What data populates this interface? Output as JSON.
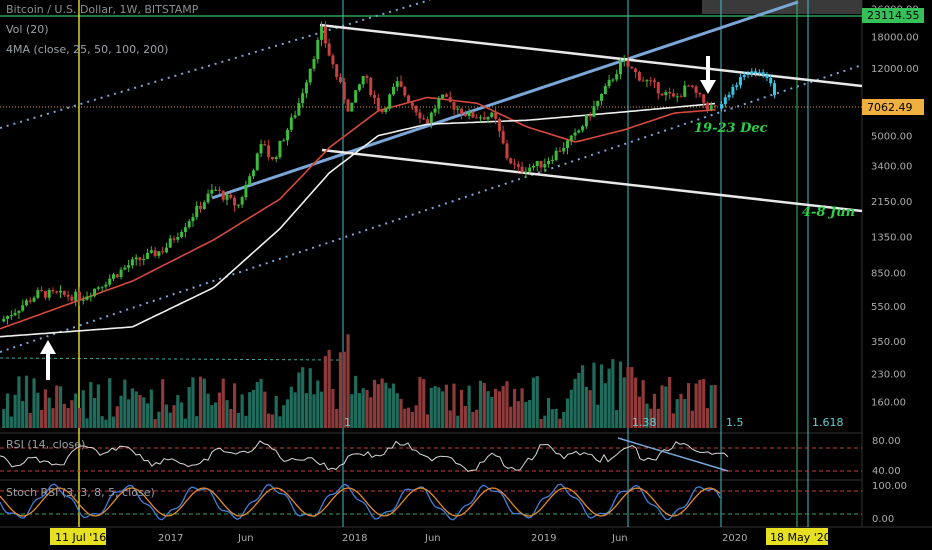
{
  "header": {
    "symbol_line": "Bitcoin / U.S. Dollar, 1W, BITSTAMP",
    "volume_label": "Vol (20)",
    "ma_label": "4MA (close, 25, 50, 100, 200)",
    "rsi_label": "RSI (14, close)",
    "stoch_label": "Stoch RSI (3, 3, 8, 5, close)"
  },
  "colors": {
    "up": "#3cbb3c",
    "down": "#c94040",
    "projection": "#37c5e8",
    "vol_up": "#1f6b5c",
    "vol_down": "#8e3a3a",
    "trendline": "#e8e8e8",
    "trendline_blue": "#7aa6d8",
    "ma_red": "#d64a3c",
    "ma_white": "#f0f0f0",
    "vline_cyan": "#3fc0c8",
    "vline_yellow": "#e7e020",
    "hline_green": "#36c05a",
    "price_orange": "#e0a030"
  },
  "annotations": {
    "dec_window": "19-23 Dec",
    "jun_window": "4-8 Jun",
    "fib_1": "1",
    "fib_138": "1.38",
    "fib_15": "1.5",
    "fib_1618": "1.618"
  },
  "chart_data": {
    "type": "candlestick",
    "log_scale": true,
    "price_axis_ticks": [
      "26000.00",
      "18000.00",
      "12000.00",
      "7062.49",
      "5000.00",
      "3400.00",
      "2150.00",
      "1350.00",
      "850.00",
      "550.00",
      "350.00",
      "230.00",
      "160.00"
    ],
    "price_axis_values": [
      26000,
      18000,
      12000,
      7062.49,
      5000,
      3400,
      2150,
      1350,
      850,
      550,
      350,
      230,
      160
    ],
    "last_price": "7062.49",
    "highlight_price": "23114.55",
    "rsi_axis_ticks": [
      "80.00",
      "40.00"
    ],
    "stoch_axis_ticks": [
      "100.00",
      "0.00"
    ],
    "time_axis_labels": [
      "2017",
      "Jun",
      "2018",
      "Jun",
      "2019",
      "Jun",
      "2020"
    ],
    "highlighted_dates": [
      "11 Jul '16",
      "18 May '20"
    ],
    "price_path": [
      [
        "2016-05-01",
        450
      ],
      [
        "2016-07-11",
        650
      ],
      [
        "2016-10-01",
        620
      ],
      [
        "2016-12-31",
        960
      ],
      [
        "2017-03-01",
        1150
      ],
      [
        "2017-06-01",
        2500
      ],
      [
        "2017-07-15",
        2000
      ],
      [
        "2017-09-01",
        4700
      ],
      [
        "2017-09-15",
        3500
      ],
      [
        "2017-11-01",
        7000
      ],
      [
        "2017-12-17",
        19500
      ],
      [
        "2018-01-01",
        14000
      ],
      [
        "2018-02-06",
        6900
      ],
      [
        "2018-03-05",
        11000
      ],
      [
        "2018-04-06",
        6700
      ],
      [
        "2018-05-05",
        9800
      ],
      [
        "2018-06-29",
        5900
      ],
      [
        "2018-07-25",
        8200
      ],
      [
        "2018-09-15",
        6500
      ],
      [
        "2018-11-01",
        6400
      ],
      [
        "2018-11-25",
        3800
      ],
      [
        "2018-12-15",
        3200
      ],
      [
        "2019-02-01",
        3500
      ],
      [
        "2019-04-01",
        5000
      ],
      [
        "2019-05-15",
        8000
      ],
      [
        "2019-06-26",
        13000
      ],
      [
        "2019-08-01",
        10500
      ],
      [
        "2019-10-01",
        8000
      ],
      [
        "2019-10-26",
        9500
      ],
      [
        "2019-12-01",
        7300
      ],
      [
        "2019-12-20",
        7060
      ]
    ],
    "projection_path": [
      [
        "2019-12-20",
        7100
      ],
      [
        "2020-01-10",
        8600
      ],
      [
        "2020-02-01",
        10500
      ],
      [
        "2020-02-20",
        11500
      ],
      [
        "2020-03-20",
        10800
      ],
      [
        "2020-04-05",
        8300
      ]
    ],
    "moving_averages": [
      {
        "name": "MA red",
        "points": [
          [
            "2016-05-01",
            410
          ],
          [
            "2017-01-01",
            760
          ],
          [
            "2017-06-01",
            1300
          ],
          [
            "2017-10-01",
            2200
          ],
          [
            "2018-01-01",
            4300
          ],
          [
            "2018-04-01",
            6900
          ],
          [
            "2018-07-01",
            8200
          ],
          [
            "2018-10-01",
            7600
          ],
          [
            "2019-01-01",
            5600
          ],
          [
            "2019-04-01",
            4600
          ],
          [
            "2019-07-01",
            5400
          ],
          [
            "2019-10-01",
            6700
          ],
          [
            "2019-12-20",
            7000
          ]
        ]
      },
      {
        "name": "MA white",
        "points": [
          [
            "2016-05-01",
            370
          ],
          [
            "2017-01-01",
            420
          ],
          [
            "2017-06-01",
            700
          ],
          [
            "2017-10-01",
            1500
          ],
          [
            "2018-01-01",
            3100
          ],
          [
            "2018-04-01",
            5000
          ],
          [
            "2018-07-01",
            5800
          ],
          [
            "2019-01-01",
            6100
          ],
          [
            "2019-07-01",
            6800
          ],
          [
            "2019-12-20",
            7600
          ]
        ]
      }
    ]
  }
}
